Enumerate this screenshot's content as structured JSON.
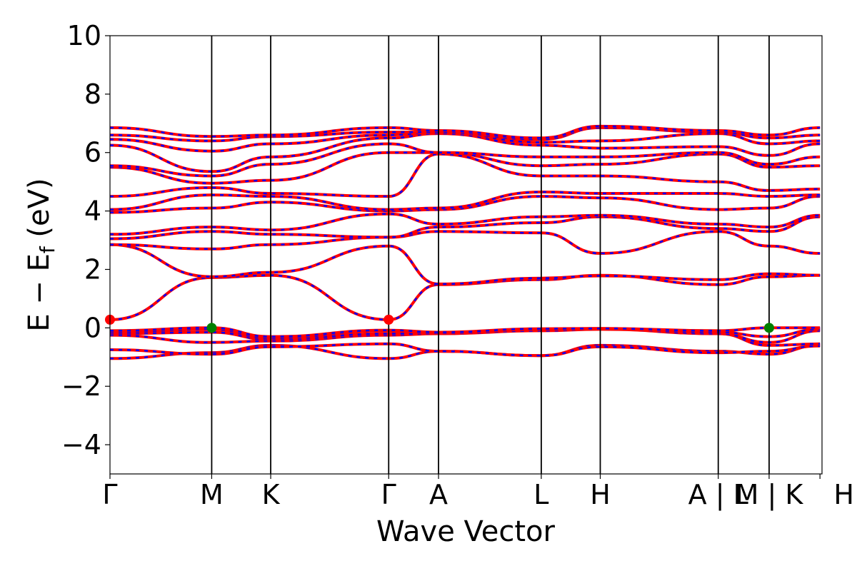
{
  "chart_data": {
    "type": "line",
    "title": "",
    "xlabel": "Wave Vector",
    "ylabel": {
      "main": "E − E",
      "subscript": "f",
      "unit": "(eV)"
    },
    "ylim": [
      -5,
      10
    ],
    "yticks": [
      -4,
      -2,
      0,
      2,
      4,
      6,
      8,
      10
    ],
    "ytick_labels": [
      "−4",
      "−2",
      "0",
      "2",
      "4",
      "6",
      "8",
      "10"
    ],
    "xlim": [
      0,
      7.0
    ],
    "kpoints": [
      {
        "label": "Γ",
        "x": 0.0
      },
      {
        "label": "M",
        "x": 1.0
      },
      {
        "label": "K",
        "x": 1.58
      },
      {
        "label": "Γ",
        "x": 2.74
      },
      {
        "label": "A",
        "x": 3.23
      },
      {
        "label": "L",
        "x": 4.24
      },
      {
        "label": "H",
        "x": 4.82
      },
      {
        "label": "A | L",
        "x": 5.98
      },
      {
        "label": "M | K",
        "x": 6.48
      },
      {
        "label": "H",
        "x": 6.98
      }
    ],
    "grid": false,
    "legend": "none",
    "colors": {
      "primary": "#ff0000",
      "dashed_overlay": "#0000ff",
      "cbm_marker": "#ff0000",
      "vbm_marker": "#008000"
    },
    "band_nodes_x": [
      0.0,
      1.0,
      1.58,
      2.74,
      3.23,
      4.24,
      4.82,
      5.98,
      6.48,
      6.98
    ],
    "series": [
      {
        "values": [
          -1.05,
          -0.85,
          -0.6,
          -1.05,
          -0.8,
          -0.95,
          -0.6,
          -0.8,
          -0.9,
          -0.6
        ]
      },
      {
        "values": [
          -0.75,
          -0.9,
          -0.65,
          -0.55,
          -0.8,
          -0.95,
          -0.65,
          -0.85,
          -0.8,
          -0.62
        ]
      },
      {
        "values": [
          -0.25,
          -0.5,
          -0.45,
          -0.25,
          -0.2,
          -0.05,
          -0.02,
          -0.2,
          -0.6,
          -0.55
        ]
      },
      {
        "values": [
          -0.2,
          -0.15,
          -0.4,
          -0.2,
          -0.2,
          -0.1,
          -0.05,
          -0.2,
          -0.5,
          -0.1
        ]
      },
      {
        "values": [
          -0.15,
          -0.05,
          -0.35,
          -0.1,
          -0.18,
          -0.05,
          -0.03,
          -0.15,
          -0.3,
          -0.05
        ]
      },
      {
        "values": [
          -0.1,
          0.0,
          -0.3,
          -0.08,
          -0.15,
          -0.03,
          -0.02,
          -0.1,
          0.0,
          0.0
        ]
      },
      {
        "values": [
          0.28,
          1.72,
          1.8,
          0.28,
          1.48,
          1.65,
          1.8,
          1.48,
          1.75,
          1.8
        ]
      },
      {
        "values": [
          2.85,
          1.75,
          1.9,
          2.8,
          1.5,
          1.7,
          1.78,
          1.65,
          1.85,
          1.8
        ]
      },
      {
        "values": [
          2.85,
          2.7,
          2.85,
          3.1,
          3.3,
          3.25,
          2.55,
          3.3,
          2.8,
          2.55
        ]
      },
      {
        "values": [
          3.05,
          3.3,
          3.2,
          3.1,
          3.45,
          3.6,
          3.8,
          3.4,
          3.3,
          3.8
        ]
      },
      {
        "values": [
          3.2,
          3.45,
          3.35,
          3.9,
          3.55,
          3.8,
          3.85,
          3.55,
          3.45,
          3.85
        ]
      },
      {
        "values": [
          3.95,
          4.1,
          4.3,
          4.0,
          4.05,
          4.5,
          4.45,
          4.05,
          4.1,
          4.5
        ]
      },
      {
        "values": [
          4.05,
          4.55,
          4.5,
          4.05,
          4.1,
          4.65,
          4.6,
          4.6,
          4.5,
          4.55
        ]
      },
      {
        "values": [
          4.5,
          4.8,
          4.6,
          4.5,
          5.95,
          5.2,
          5.2,
          5.0,
          4.7,
          4.75
        ]
      },
      {
        "values": [
          5.5,
          4.95,
          5.05,
          6.0,
          6.0,
          5.55,
          5.6,
          5.95,
          5.5,
          5.55
        ]
      },
      {
        "values": [
          5.55,
          5.2,
          5.6,
          6.3,
          6.0,
          5.85,
          5.85,
          6.0,
          5.6,
          5.85
        ]
      },
      {
        "values": [
          6.25,
          5.35,
          5.85,
          6.5,
          6.65,
          6.25,
          6.15,
          6.2,
          5.9,
          6.3
        ]
      },
      {
        "values": [
          6.45,
          6.05,
          6.3,
          6.6,
          6.7,
          6.35,
          6.4,
          6.65,
          6.3,
          6.4
        ]
      },
      {
        "values": [
          6.6,
          6.4,
          6.55,
          6.7,
          6.7,
          6.45,
          6.85,
          6.7,
          6.5,
          6.6
        ]
      },
      {
        "values": [
          6.85,
          6.55,
          6.6,
          6.85,
          6.75,
          6.5,
          6.9,
          6.75,
          6.6,
          6.85
        ]
      }
    ],
    "markers": [
      {
        "x": 0.0,
        "y": 0.28,
        "color": "#ff0000",
        "label": "CBM"
      },
      {
        "x": 2.74,
        "y": 0.28,
        "color": "#ff0000",
        "label": "CBM"
      },
      {
        "x": 1.0,
        "y": 0.0,
        "color": "#008000",
        "label": "VBM"
      },
      {
        "x": 6.48,
        "y": 0.0,
        "color": "#008000",
        "label": "VBM"
      }
    ]
  }
}
